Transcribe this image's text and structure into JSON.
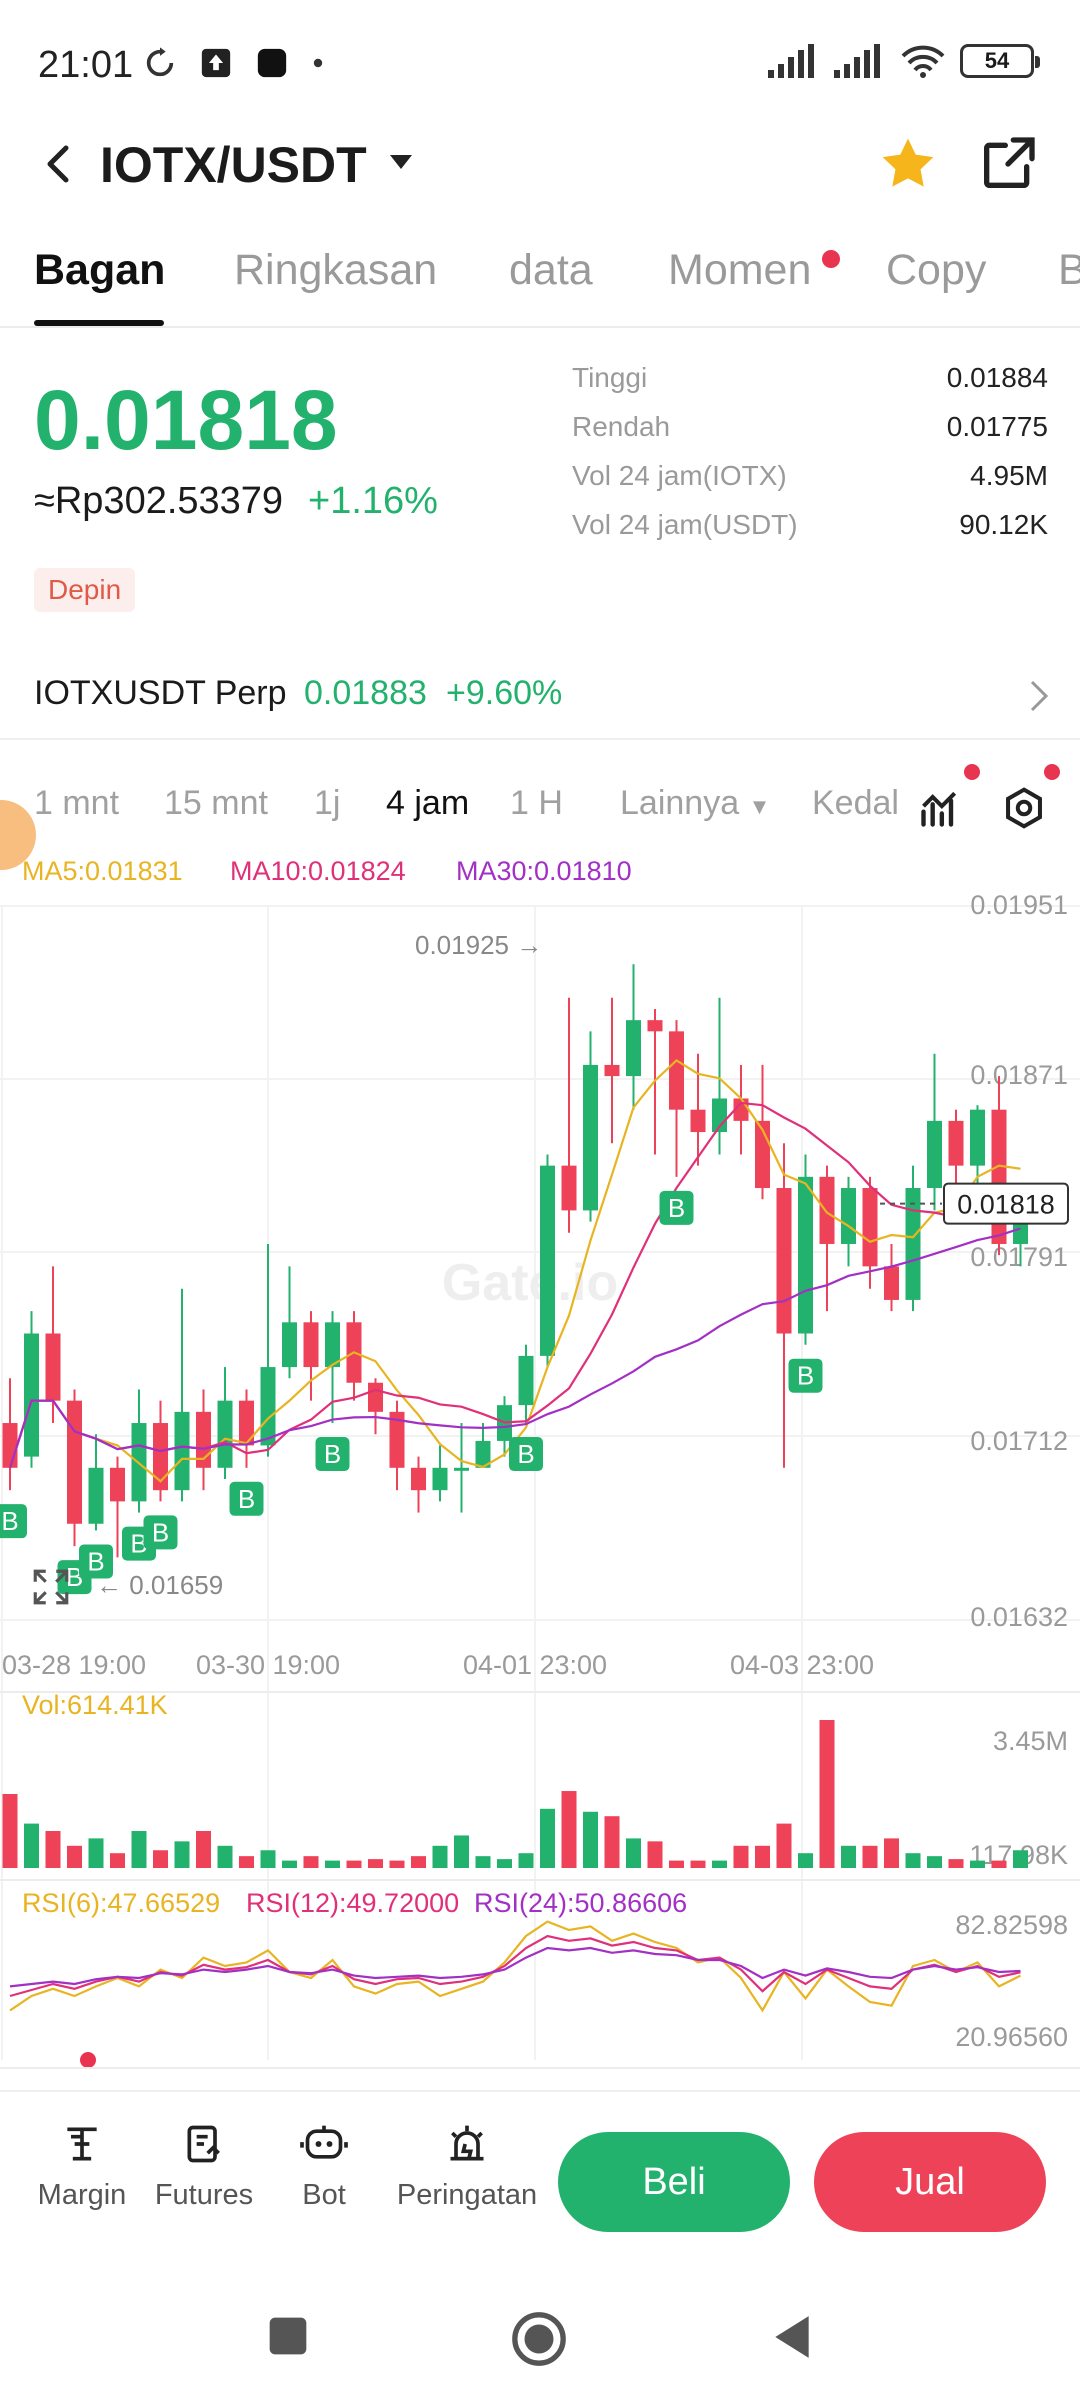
{
  "status_bar": {
    "time": "21:01",
    "battery": "54"
  },
  "header": {
    "pair": "IOTX/USDT"
  },
  "tabs": [
    "Bagan",
    "Ringkasan",
    "data",
    "Momen",
    "Copy",
    "B"
  ],
  "price": {
    "last": "0.01818",
    "fiat": "≈Rp302.53379",
    "change": "+1.16%",
    "tag": "Depin"
  },
  "stats": [
    {
      "label": "Tinggi",
      "value": "0.01884"
    },
    {
      "label": "Rendah",
      "value": "0.01775"
    },
    {
      "label": "Vol 24 jam(IOTX)",
      "value": "4.95M"
    },
    {
      "label": "Vol 24 jam(USDT)",
      "value": "90.12K"
    }
  ],
  "perp": {
    "name": "IOTXUSDT Perp",
    "price": "0.01883",
    "change": "+9.60%"
  },
  "intervals": [
    "1 mnt",
    "15 mnt",
    "1j",
    "4 jam",
    "1 H",
    "Lainnya",
    "Kedal"
  ],
  "active_interval": "4 jam",
  "ma_legend": {
    "ma5": "MA5:0.01831",
    "ma10": "MA10:0.01824",
    "ma30": "MA30:0.01810"
  },
  "chart_data": {
    "type": "candlestick",
    "y_axis_labels": [
      "0.01951",
      "0.01871",
      "0.01791",
      "0.01712",
      "0.01632"
    ],
    "ylim": [
      0.01632,
      0.01951
    ],
    "x_labels": [
      "03-28 19:00",
      "03-30 19:00",
      "04-01 23:00",
      "04-03 23:00"
    ],
    "current_price_label": "0.01818",
    "max_annotation": "0.01925 →",
    "min_annotation": "← 0.01659",
    "watermark": "Gate.io",
    "candles": [
      [
        0.0172,
        0.017,
        0.0174,
        0.0169
      ],
      [
        0.01705,
        0.0176,
        0.0177,
        0.017
      ],
      [
        0.0176,
        0.0173,
        0.0179,
        0.0172
      ],
      [
        0.0173,
        0.01675,
        0.01735,
        0.01665
      ],
      [
        0.01675,
        0.017,
        0.01715,
        0.01672
      ],
      [
        0.017,
        0.01685,
        0.01705,
        0.0166
      ],
      [
        0.01685,
        0.0172,
        0.01735,
        0.0168
      ],
      [
        0.0172,
        0.0169,
        0.0173,
        0.01685
      ],
      [
        0.0169,
        0.01725,
        0.0178,
        0.01685
      ],
      [
        0.01725,
        0.017,
        0.01735,
        0.0169
      ],
      [
        0.017,
        0.0173,
        0.01745,
        0.01695
      ],
      [
        0.0173,
        0.0171,
        0.01735,
        0.017
      ],
      [
        0.0171,
        0.01745,
        0.018,
        0.01705
      ],
      [
        0.01745,
        0.01765,
        0.0179,
        0.0174
      ],
      [
        0.01765,
        0.01745,
        0.0177,
        0.0173
      ],
      [
        0.01745,
        0.01765,
        0.0177,
        0.0172
      ],
      [
        0.01765,
        0.01738,
        0.0177,
        0.0173
      ],
      [
        0.01738,
        0.01725,
        0.0174,
        0.01715
      ],
      [
        0.01725,
        0.017,
        0.0173,
        0.0169
      ],
      [
        0.017,
        0.0169,
        0.01705,
        0.0168
      ],
      [
        0.0169,
        0.017,
        0.0171,
        0.01685
      ],
      [
        0.017,
        0.017,
        0.0172,
        0.0168
      ],
      [
        0.017,
        0.01712,
        0.0172,
        0.017
      ],
      [
        0.01712,
        0.01728,
        0.01732,
        0.01705
      ],
      [
        0.01728,
        0.0175,
        0.01755,
        0.0172
      ],
      [
        0.0175,
        0.01835,
        0.0184,
        0.01745
      ],
      [
        0.01835,
        0.01815,
        0.0191,
        0.01805
      ],
      [
        0.01815,
        0.0188,
        0.01895,
        0.0181
      ],
      [
        0.0188,
        0.01875,
        0.0191,
        0.01845
      ],
      [
        0.01875,
        0.019,
        0.01925,
        0.0186
      ],
      [
        0.019,
        0.01895,
        0.01905,
        0.0184
      ],
      [
        0.01895,
        0.0186,
        0.019,
        0.0183
      ],
      [
        0.0186,
        0.0185,
        0.01885,
        0.01835
      ],
      [
        0.0185,
        0.01865,
        0.0191,
        0.0184
      ],
      [
        0.01865,
        0.01855,
        0.0188,
        0.0184
      ],
      [
        0.01855,
        0.01825,
        0.0188,
        0.0182
      ],
      [
        0.01825,
        0.0176,
        0.01845,
        0.017
      ],
      [
        0.0176,
        0.0183,
        0.0184,
        0.01755
      ],
      [
        0.0183,
        0.018,
        0.01835,
        0.0177
      ],
      [
        0.018,
        0.01825,
        0.0183,
        0.0179
      ],
      [
        0.01825,
        0.0179,
        0.0183,
        0.0178
      ],
      [
        0.0179,
        0.01775,
        0.018,
        0.0177
      ],
      [
        0.01775,
        0.01825,
        0.01835,
        0.0177
      ],
      [
        0.01825,
        0.01855,
        0.01885,
        0.01815
      ],
      [
        0.01855,
        0.01835,
        0.0186,
        0.01815
      ],
      [
        0.01835,
        0.0186,
        0.01862,
        0.01822
      ],
      [
        0.0186,
        0.018,
        0.01875,
        0.01795
      ],
      [
        0.018,
        0.01818,
        0.01822,
        0.0179
      ]
    ],
    "volume": {
      "label": "Vol:614.41K",
      "axis_labels": [
        "3.45M",
        "117.98K"
      ],
      "values": [
        0.5,
        0.3,
        0.25,
        0.15,
        0.2,
        0.1,
        0.25,
        0.12,
        0.18,
        0.25,
        0.15,
        0.08,
        0.12,
        0.05,
        0.08,
        0.05,
        0.05,
        0.06,
        0.05,
        0.08,
        0.15,
        0.22,
        0.08,
        0.06,
        0.1,
        0.4,
        0.52,
        0.38,
        0.35,
        0.2,
        0.18,
        0.05,
        0.05,
        0.05,
        0.15,
        0.15,
        0.3,
        0.1,
        1.0,
        0.15,
        0.15,
        0.2,
        0.1,
        0.08,
        0.06,
        0.05,
        0.05,
        0.12
      ]
    },
    "rsi": {
      "labels": [
        "RSI(6):47.66529",
        "RSI(12):49.72000",
        "RSI(24):50.86606"
      ],
      "axis_labels": [
        "82.82598",
        "20.96560"
      ],
      "rsi6": [
        18,
        30,
        36,
        30,
        38,
        45,
        38,
        52,
        45,
        62,
        55,
        58,
        68,
        50,
        45,
        60,
        38,
        32,
        40,
        42,
        30,
        36,
        42,
        58,
        80,
        92,
        85,
        88,
        76,
        82,
        75,
        70,
        58,
        62,
        45,
        18,
        50,
        28,
        52,
        38,
        25,
        22,
        55,
        60,
        50,
        58,
        38,
        47
      ],
      "rsi12": [
        30,
        35,
        40,
        36,
        42,
        46,
        42,
        50,
        47,
        56,
        52,
        54,
        60,
        50,
        48,
        55,
        44,
        40,
        44,
        45,
        40,
        42,
        46,
        55,
        70,
        80,
        76,
        78,
        72,
        75,
        70,
        68,
        60,
        62,
        52,
        34,
        50,
        40,
        52,
        45,
        38,
        36,
        52,
        56,
        50,
        55,
        46,
        49.7
      ],
      "rsi24": [
        38,
        40,
        42,
        40,
        44,
        46,
        45,
        49,
        48,
        52,
        50,
        52,
        55,
        50,
        49,
        52,
        47,
        45,
        46,
        47,
        45,
        46,
        48,
        52,
        62,
        70,
        68,
        70,
        66,
        68,
        65,
        64,
        60,
        60,
        55,
        45,
        52,
        47,
        53,
        50,
        46,
        45,
        52,
        55,
        52,
        54,
        50,
        50.9
      ]
    },
    "ma": {
      "ma5_color": "#e8b422",
      "ma10_color": "#e0307a",
      "ma30_color": "#a230c4"
    }
  },
  "buy_markers": [
    "B",
    "B",
    "B",
    "B",
    "B",
    "B",
    "B",
    "B",
    "B",
    "B"
  ],
  "bottom_bar": {
    "items": [
      "Margin",
      "Futures",
      "Bot",
      "Peringatan"
    ],
    "buy": "Beli",
    "sell": "Jual"
  },
  "colors": {
    "up": "#23b26d",
    "down": "#ee4258",
    "ma5": "#e8b422",
    "ma10": "#e0307a",
    "ma30": "#a230c4"
  }
}
